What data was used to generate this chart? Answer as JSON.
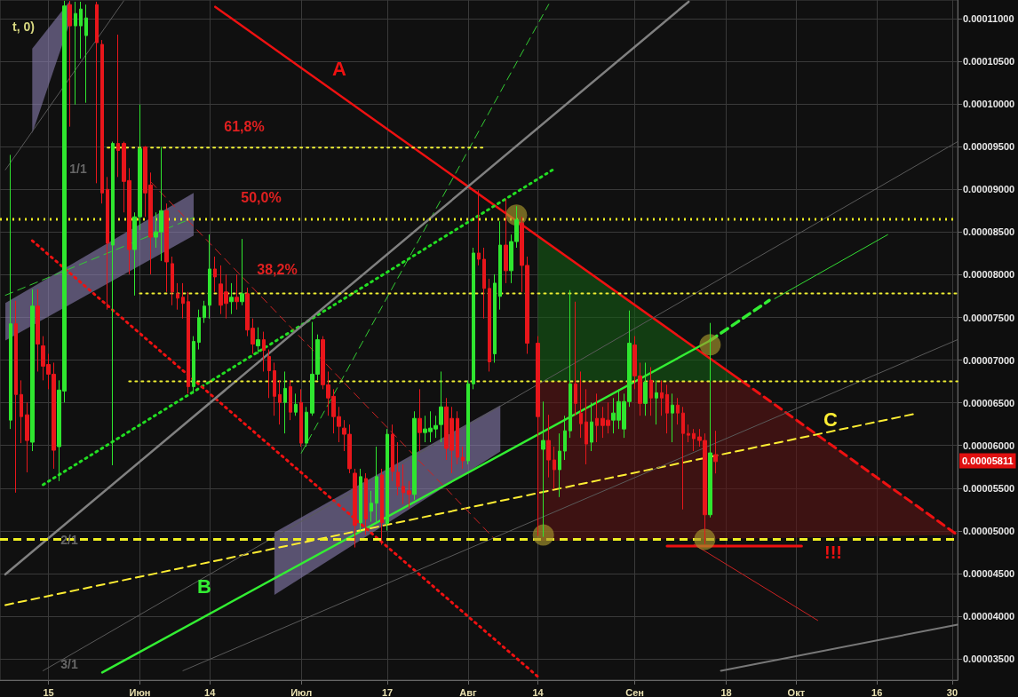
{
  "chart_data": {
    "type": "candlestick",
    "grid": true,
    "xlim": [
      "--05-06",
      "--10-31"
    ],
    "ylim": [
      3.25e-05,
      0.0001122
    ],
    "xticks": [
      {
        "value": "--05-15",
        "label": "15"
      },
      {
        "value": "--06-01",
        "label": "Июн"
      },
      {
        "value": "--06-14",
        "label": "14"
      },
      {
        "value": "--07-01",
        "label": "Июл"
      },
      {
        "value": "--07-17",
        "label": "17"
      },
      {
        "value": "--08-01",
        "label": "Авг"
      },
      {
        "value": "--08-14",
        "label": "14"
      },
      {
        "value": "--09-01",
        "label": "Сен"
      },
      {
        "value": "--09-18",
        "label": "18"
      },
      {
        "value": "--10-01",
        "label": "Окт"
      },
      {
        "value": "--10-16",
        "label": "16"
      },
      {
        "value": "--10-30",
        "label": "30"
      }
    ],
    "yticks": [
      {
        "value": 3.5e-05,
        "label": "0.00003500"
      },
      {
        "value": 4e-05,
        "label": "0.00004000"
      },
      {
        "value": 4.5e-05,
        "label": "0.00004500"
      },
      {
        "value": 5e-05,
        "label": "0.00005000"
      },
      {
        "value": 5.5e-05,
        "label": "0.00005500"
      },
      {
        "value": 6e-05,
        "label": "0.00006000"
      },
      {
        "value": 6.5e-05,
        "label": "0.00006500"
      },
      {
        "value": 7e-05,
        "label": "0.00007000"
      },
      {
        "value": 7.5e-05,
        "label": "0.00007500"
      },
      {
        "value": 8e-05,
        "label": "0.00008000"
      },
      {
        "value": 8.5e-05,
        "label": "0.00008500"
      },
      {
        "value": 9e-05,
        "label": "0.00009000"
      },
      {
        "value": 9.5e-05,
        "label": "0.00009500"
      },
      {
        "value": 0.0001,
        "label": "0.00010000"
      },
      {
        "value": 0.000105,
        "label": "0.00010500"
      },
      {
        "value": 0.00011,
        "label": "0.00011000"
      }
    ],
    "series": [
      {
        "color": "#2fe62f",
        "x": [
          "--05-08",
          "--05-12",
          "--05-17",
          "--05-18",
          "--05-20",
          "--05-21",
          "--05-22",
          "--05-27",
          "--05-31",
          "--06-01",
          "--06-04",
          "--06-05",
          "--06-11",
          "--06-12",
          "--06-13",
          "--06-14",
          "--06-18",
          "--06-20",
          "--06-23",
          "--06-28",
          "--06-30",
          "--07-02",
          "--07-03",
          "--07-04",
          "--07-12",
          "--07-14",
          "--07-15",
          "--07-17",
          "--07-22",
          "--07-24",
          "--07-25",
          "--07-26",
          "--07-27",
          "--08-01",
          "--08-02",
          "--08-06",
          "--08-07",
          "--08-09",
          "--08-10",
          "--08-15",
          "--08-18",
          "--08-19",
          "--08-20",
          "--08-24",
          "--08-28",
          "--08-29",
          "--08-30",
          "--08-31",
          "--09-03",
          "--09-05",
          "--09-08",
          "--09-15"
        ],
        "ohlc": [
          [
            6.297e-05,
            9.405e-05,
            6.193e-05,
            7.426e-05
          ],
          [
            6.038e-05,
            7.83e-05,
            5.934e-05,
            7.633e-05
          ],
          [
            5.986e-05,
            6.763e-05,
            5.582e-05,
            6.649e-05
          ],
          [
            6.638e-05,
            0.0001121,
            6.504e-05,
            0.0001115
          ],
          [
            0.00010917,
            0.000112,
            9.995e-05,
            0.00011062
          ],
          [
            0.00010917,
            0.000112,
            0.00010534,
            0.00011114
          ],
          [
            0.00010803,
            0.00011166,
            0.00010016,
            0.0001101
          ],
          [
            8.348e-05,
            9.56e-05,
            5.768e-05,
            9.539e-05
          ],
          [
            8.296e-05,
            8.731e-05,
            7.757e-05,
            8.679e-05
          ],
          [
            8.679e-05,
            9.995e-05,
            8.524e-05,
            9.477e-05
          ],
          [
            8.441e-05,
            8.731e-05,
            8.317e-05,
            8.503e-05
          ],
          [
            8.503e-05,
            9.498e-05,
            8.162e-05,
            8.752e-05
          ],
          [
            6.69e-05,
            7.281e-05,
            6.607e-05,
            7.219e-05
          ],
          [
            7.208e-05,
            7.592e-05,
            7.125e-05,
            7.498e-05
          ],
          [
            7.498e-05,
            7.695e-05,
            7.436e-05,
            7.633e-05
          ],
          [
            7.643e-05,
            8.472e-05,
            7.488e-05,
            8.068e-05
          ],
          [
            7.685e-05,
            7.902e-05,
            7.54e-05,
            7.737e-05
          ],
          [
            7.685e-05,
            8.42e-05,
            7.643e-05,
            7.778e-05
          ],
          [
            7.167e-05,
            7.384e-05,
            7.074e-05,
            7.239e-05
          ],
          [
            6.504e-05,
            6.866e-05,
            6.141e-05,
            6.669e-05
          ],
          [
            6.39e-05,
            6.607e-05,
            6.348e-05,
            6.483e-05
          ],
          [
            6.027e-05,
            6.452e-05,
            5.986e-05,
            6.39e-05
          ],
          [
            6.38e-05,
            7.447e-05,
            6.348e-05,
            6.835e-05
          ],
          [
            6.835e-05,
            7.301e-05,
            6.763e-05,
            7.239e-05
          ],
          [
            5.095e-05,
            5.727e-05,
            5.002e-05,
            5.634e-05
          ],
          [
            5.23e-05,
            5.468e-05,
            5.105e-05,
            5.323e-05
          ],
          [
            5.323e-05,
            5.986e-05,
            5.105e-05,
            5.634e-05
          ],
          [
            5.085e-05,
            6.193e-05,
            5.002e-05,
            6.131e-05
          ],
          [
            5.426e-05,
            6.4e-05,
            5.364e-05,
            6.317e-05
          ],
          [
            6.151e-05,
            6.348e-05,
            6.038e-05,
            6.193e-05
          ],
          [
            6.162e-05,
            6.4e-05,
            6.038e-05,
            6.203e-05
          ],
          [
            6.193e-05,
            6.348e-05,
            6.089e-05,
            6.234e-05
          ],
          [
            6.245e-05,
            6.866e-05,
            6.038e-05,
            6.452e-05
          ],
          [
            5.82e-05,
            6.763e-05,
            5.779e-05,
            6.722e-05
          ],
          [
            6.722e-05,
            8.317e-05,
            6.659e-05,
            8.255e-05
          ],
          [
            7.074e-05,
            8.006e-05,
            6.97e-05,
            7.902e-05
          ],
          [
            7.747e-05,
            8.628e-05,
            7.592e-05,
            8.348e-05
          ],
          [
            8.048e-05,
            8.472e-05,
            7.902e-05,
            8.389e-05
          ],
          [
            8.389e-05,
            8.804e-05,
            8.317e-05,
            8.648e-05
          ],
          [
            5.955e-05,
            6.514e-05,
            4.929e-05,
            6.058e-05
          ],
          [
            5.716e-05,
            6.141e-05,
            5.395e-05,
            5.934e-05
          ],
          [
            5.934e-05,
            6.348e-05,
            5.83e-05,
            6.172e-05
          ],
          [
            6.172e-05,
            7.82e-05,
            6.089e-05,
            6.722e-05
          ],
          [
            6.038e-05,
            6.504e-05,
            5.934e-05,
            6.276e-05
          ],
          [
            6.297e-05,
            6.556e-05,
            6.141e-05,
            6.38e-05
          ],
          [
            6.297e-05,
            6.659e-05,
            6.193e-05,
            6.514e-05
          ],
          [
            6.193e-05,
            6.607e-05,
            6.089e-05,
            6.514e-05
          ],
          [
            6.514e-05,
            7.581e-05,
            6.452e-05,
            7.198e-05
          ],
          [
            6.493e-05,
            6.97e-05,
            6.348e-05,
            6.742e-05
          ],
          [
            6.556e-05,
            6.763e-05,
            6.245e-05,
            6.618e-05
          ],
          [
            6.38e-05,
            6.607e-05,
            6.038e-05,
            6.473e-05
          ],
          [
            5.188e-05,
            7.436e-05,
            5.157e-05,
            5.913e-05
          ]
        ]
      },
      {
        "color": "#e8161b",
        "x": [
          "--05-09",
          "--05-10",
          "--05-11",
          "--05-13",
          "--05-14",
          "--05-15",
          "--05-16",
          "--05-19",
          "--05-24",
          "--05-25",
          "--05-26",
          "--05-28",
          "--05-29",
          "--05-30",
          "--06-02",
          "--06-03",
          "--06-06",
          "--06-07",
          "--06-08",
          "--06-09",
          "--06-10",
          "--06-15",
          "--06-16",
          "--06-17",
          "--06-19",
          "--06-21",
          "--06-22",
          "--06-24",
          "--06-25",
          "--06-26",
          "--06-27",
          "--06-29",
          "--07-01",
          "--07-05",
          "--07-06",
          "--07-07",
          "--07-08",
          "--07-09",
          "--07-10",
          "--07-11",
          "--07-13",
          "--07-16",
          "--07-18",
          "--07-19",
          "--07-20",
          "--07-21",
          "--07-23",
          "--07-28",
          "--07-29",
          "--07-30",
          "--07-31",
          "--08-03",
          "--08-04",
          "--08-05",
          "--08-08",
          "--08-11",
          "--08-12",
          "--08-14",
          "--08-16",
          "--08-17",
          "--08-21",
          "--08-22",
          "--08-23",
          "--08-25",
          "--08-26",
          "--08-27",
          "--09-01",
          "--09-02",
          "--09-04",
          "--09-06",
          "--09-07",
          "--09-09",
          "--09-10",
          "--09-11",
          "--09-12",
          "--09-13",
          "--09-14",
          "--09-16"
        ],
        "ohlc": [
          [
            7.426e-05,
            7.695e-05,
            5.447e-05,
            6.597e-05
          ],
          [
            6.597e-05,
            6.763e-05,
            6.027e-05,
            6.338e-05
          ],
          [
            6.359e-05,
            6.504e-05,
            5.685e-05,
            6.058e-05
          ],
          [
            7.633e-05,
            7.83e-05,
            6.866e-05,
            7.188e-05
          ],
          [
            7.167e-05,
            7.281e-05,
            6.763e-05,
            6.929e-05
          ],
          [
            6.949e-05,
            7.074e-05,
            6.659e-05,
            6.835e-05
          ],
          [
            6.835e-05,
            6.97e-05,
            5.727e-05,
            5.944e-05
          ],
          [
            0.00011166,
            0.0001121,
            9.736e-05,
            0.00010917
          ],
          [
            0.00011166,
            0.000112,
            9.073e-05,
            0.0001072
          ],
          [
            0.000107,
            0.00010751,
            8.835e-05,
            8.959e-05
          ],
          [
            9.001e-05,
            9.146e-05,
            7.592e-05,
            8.369e-05
          ],
          [
            9.539e-05,
            0.00010814,
            9.146e-05,
            9.456e-05
          ],
          [
            9.539e-05,
            9.56e-05,
            8.731e-05,
            9.094e-05
          ],
          [
            9.104e-05,
            9.25e-05,
            8.006e-05,
            8.296e-05
          ],
          [
            9.498e-05,
            9.508e-05,
            8.679e-05,
            8.959e-05
          ],
          [
            9.052e-05,
            9.198e-05,
            8.006e-05,
            8.441e-05
          ],
          [
            8.752e-05,
            8.835e-05,
            7.799e-05,
            8.151e-05
          ],
          [
            8.131e-05,
            8.213e-05,
            7.643e-05,
            7.799e-05
          ],
          [
            7.778e-05,
            7.902e-05,
            7.592e-05,
            7.726e-05
          ],
          [
            7.737e-05,
            7.902e-05,
            7.488e-05,
            7.664e-05
          ],
          [
            7.685e-05,
            7.799e-05,
            6.607e-05,
            6.69e-05
          ],
          [
            8.068e-05,
            8.213e-05,
            7.799e-05,
            7.975e-05
          ],
          [
            7.892e-05,
            8.11e-05,
            7.54e-05,
            7.643e-05
          ],
          [
            7.799e-05,
            8.006e-05,
            7.488e-05,
            7.664e-05
          ],
          [
            7.737e-05,
            8.006e-05,
            7.592e-05,
            7.685e-05
          ],
          [
            7.778e-05,
            7.85e-05,
            7.281e-05,
            7.353e-05
          ],
          [
            7.374e-05,
            7.488e-05,
            7.074e-05,
            7.188e-05
          ],
          [
            7.239e-05,
            7.333e-05,
            6.866e-05,
            7.115e-05
          ],
          [
            7.043e-05,
            7.125e-05,
            6.556e-05,
            6.876e-05
          ],
          [
            6.876e-05,
            6.97e-05,
            6.348e-05,
            6.576e-05
          ],
          [
            6.597e-05,
            6.763e-05,
            6.245e-05,
            6.504e-05
          ],
          [
            6.69e-05,
            6.763e-05,
            6.297e-05,
            6.39e-05
          ],
          [
            6.504e-05,
            6.659e-05,
            5.986e-05,
            6.027e-05
          ],
          [
            7.239e-05,
            7.281e-05,
            6.659e-05,
            6.711e-05
          ],
          [
            6.711e-05,
            6.866e-05,
            6.348e-05,
            6.556e-05
          ],
          [
            6.576e-05,
            6.659e-05,
            6.141e-05,
            6.338e-05
          ],
          [
            6.338e-05,
            6.452e-05,
            6.038e-05,
            6.224e-05
          ],
          [
            6.203e-05,
            6.297e-05,
            5.934e-05,
            6.131e-05
          ],
          [
            6.131e-05,
            6.245e-05,
            5.675e-05,
            5.727e-05
          ],
          [
            5.675e-05,
            5.727e-05,
            4.805e-05,
            5.064e-05
          ],
          [
            5.613e-05,
            5.675e-05,
            4.95e-05,
            5.136e-05
          ],
          [
            5.654e-05,
            5.727e-05,
            4.836e-05,
            5.095e-05
          ],
          [
            6.131e-05,
            6.245e-05,
            5.582e-05,
            5.696e-05
          ],
          [
            5.686e-05,
            6.038e-05,
            5.416e-05,
            5.52e-05
          ],
          [
            5.52e-05,
            5.779e-05,
            5.312e-05,
            5.447e-05
          ],
          [
            5.468e-05,
            5.582e-05,
            5.261e-05,
            5.426e-05
          ],
          [
            6.317e-05,
            6.659e-05,
            5.934e-05,
            6.151e-05
          ],
          [
            6.452e-05,
            6.556e-05,
            5.83e-05,
            5.965e-05
          ],
          [
            6.317e-05,
            6.452e-05,
            5.675e-05,
            5.944e-05
          ],
          [
            6.317e-05,
            6.4e-05,
            5.779e-05,
            5.862e-05
          ],
          [
            5.862e-05,
            5.986e-05,
            5.727e-05,
            5.82e-05
          ],
          [
            8.255e-05,
            8.99e-05,
            8.11e-05,
            8.182e-05
          ],
          [
            8.182e-05,
            8.317e-05,
            7.488e-05,
            7.84e-05
          ],
          [
            7.84e-05,
            7.954e-05,
            6.866e-05,
            6.98e-05
          ],
          [
            8.348e-05,
            8.887e-05,
            7.902e-05,
            8.048e-05
          ],
          [
            8.607e-05,
            8.679e-05,
            7.799e-05,
            8.11e-05
          ],
          [
            8.11e-05,
            8.213e-05,
            7.074e-05,
            7.198e-05
          ],
          [
            7.198e-05,
            7.281e-05,
            4.94e-05,
            6.338e-05
          ],
          [
            6.058e-05,
            6.359e-05,
            5.626e-05,
            5.83e-05
          ],
          [
            5.83e-05,
            5.986e-05,
            5.489e-05,
            5.716e-05
          ],
          [
            6.722e-05,
            7.685e-05,
            6.348e-05,
            6.493e-05
          ],
          [
            6.38e-05,
            6.866e-05,
            6.089e-05,
            6.255e-05
          ],
          [
            6.276e-05,
            6.659e-05,
            5.779e-05,
            6.017e-05
          ],
          [
            6.317e-05,
            6.607e-05,
            6.038e-05,
            6.234e-05
          ],
          [
            6.317e-05,
            6.452e-05,
            6.089e-05,
            6.234e-05
          ],
          [
            6.297e-05,
            6.504e-05,
            6.141e-05,
            6.234e-05
          ],
          [
            7.177e-05,
            7.281e-05,
            6.659e-05,
            6.815e-05
          ],
          [
            6.815e-05,
            6.97e-05,
            6.348e-05,
            6.493e-05
          ],
          [
            6.763e-05,
            6.918e-05,
            6.348e-05,
            6.556e-05
          ],
          [
            6.618e-05,
            6.763e-05,
            6.348e-05,
            6.556e-05
          ],
          [
            6.597e-05,
            6.711e-05,
            6.141e-05,
            6.38e-05
          ],
          [
            6.473e-05,
            6.556e-05,
            6.245e-05,
            6.38e-05
          ],
          [
            6.38e-05,
            6.452e-05,
            5.25e-05,
            6.141e-05
          ],
          [
            6.141e-05,
            6.245e-05,
            6.038e-05,
            6.12e-05
          ],
          [
            6.141e-05,
            6.193e-05,
            5.934e-05,
            6.079e-05
          ],
          [
            6.1e-05,
            6.193e-05,
            5.986e-05,
            6.058e-05
          ],
          [
            6.058e-05,
            6.141e-05,
            4.846e-05,
            5.188e-05
          ],
          [
            5.892e-05,
            6.172e-05,
            5.672e-05,
            5.811e-05
          ]
        ]
      },
      {
        "type": "line",
        "color": "#ee1111",
        "line_style": "solid",
        "x": [
          "--06-15",
          "--09-21"
        ],
        "values": [
          0.0001114,
          6.75e-05
        ]
      },
      {
        "type": "line",
        "color": "#ee1111",
        "line_style": "dashed",
        "x": [
          "--09-21",
          "--10-31"
        ],
        "values": [
          6.75e-05,
          4.95e-05
        ]
      },
      {
        "type": "line",
        "color": "#33ee33",
        "line_style": "solid",
        "x": [
          "--05-25",
          "--09-15"
        ],
        "values": [
          3.34e-05,
          7.23e-05
        ]
      },
      {
        "type": "line",
        "color": "#33ee33",
        "line_style": "dashed",
        "x": [
          "--09-15",
          "--09-26"
        ],
        "values": [
          7.23e-05,
          7.7e-05
        ]
      },
      {
        "type": "line",
        "color": "#33dd33",
        "line_style": "solid",
        "x": [
          "--09-27",
          "--10-18"
        ],
        "values": [
          7.72e-05,
          8.47e-05
        ]
      },
      {
        "type": "line",
        "color": "#ffee33",
        "line_style": "dashed",
        "x": [
          "--05-07",
          "--10-23"
        ],
        "values": [
          4.13e-05,
          6.37e-05
        ]
      },
      {
        "type": "line",
        "color": "#22dd22",
        "line_style": "dotted",
        "x": [
          "--05-14",
          "--08-17"
        ],
        "values": [
          5.54e-05,
          9.24e-05
        ]
      },
      {
        "type": "line",
        "color": "#33cc33",
        "line_style": "dashed",
        "x": [
          "--05-07",
          "--06-11"
        ],
        "values": [
          7.76e-05,
          8.67e-05
        ]
      },
      {
        "type": "line",
        "color": "#33cc33",
        "line_style": "dashed",
        "x": [
          "--07-01",
          "--08-16"
        ],
        "values": [
          5.91e-05,
          0.0001117
        ]
      },
      {
        "type": "line",
        "color": "#ee1111",
        "line_style": "dotted",
        "x": [
          "--05-12",
          "--08-14"
        ],
        "values": [
          8.4e-05,
          3.29e-05
        ]
      },
      {
        "type": "line",
        "color": "#cc2222",
        "line_style": "dashed",
        "x": [
          "--06-03",
          "--08-06"
        ],
        "values": [
          9.09e-05,
          4.9e-05
        ]
      },
      {
        "type": "line",
        "color": "#808080",
        "line_style": "solid",
        "x": [
          "--05-07",
          "--09-11"
        ],
        "values": [
          4.49e-05,
          0.000112
        ]
      },
      {
        "type": "line",
        "color": "#5a5a5a",
        "line_style": "solid",
        "x": [
          "--05-07",
          "--05-29"
        ],
        "values": [
          9.23e-05,
          0.0001121
        ]
      },
      {
        "type": "line",
        "color": "#5a5a5a",
        "line_style": "solid",
        "x": [
          "--05-14",
          "--10-31"
        ],
        "values": [
          3.36e-05,
          9.56e-05
        ]
      },
      {
        "type": "line",
        "color": "#5a5a5a",
        "line_style": "solid",
        "x": [
          "--06-09",
          "--10-31"
        ],
        "values": [
          3.36e-05,
          7.24e-05
        ]
      },
      {
        "type": "line",
        "color": "#787878",
        "line_style": "solid",
        "x": [
          "--09-17",
          "--10-31"
        ],
        "values": [
          3.36e-05,
          3.9e-05
        ]
      },
      {
        "type": "line",
        "color": "#eeee33",
        "line_style": "dotted",
        "x": [
          "--05-26",
          "--08-04"
        ],
        "values": [
          9.49e-05,
          9.49e-05
        ]
      },
      {
        "type": "line",
        "color": "#eeee33",
        "line_style": "dotted",
        "x": [
          "--06-01",
          "--10-31"
        ],
        "values": [
          7.78e-05,
          7.78e-05
        ]
      },
      {
        "type": "line",
        "color": "#eeee33",
        "line_style": "dotted",
        "x": [
          "--05-30",
          "--10-31"
        ],
        "values": [
          6.75e-05,
          6.75e-05
        ]
      },
      {
        "type": "line",
        "color": "#ee1111",
        "line_style": "solid",
        "x": [
          "--09-07",
          "--10-02"
        ],
        "values": [
          4.82e-05,
          4.82e-05
        ]
      },
      {
        "type": "line",
        "color": "#cc2222",
        "line_style": "solid",
        "x": [
          "--09-12",
          "--10-05"
        ],
        "values": [
          4.84e-05,
          3.95e-05
        ]
      },
      {
        "type": "area",
        "color": "#145c14",
        "x": [
          "--08-14",
          "--09-21"
        ],
        "values": [
          null,
          null
        ],
        "lower": [
          6.75e-05,
          6.75e-05
        ],
        "upper": [
          8.45e-05,
          6.75e-05
        ]
      },
      {
        "type": "area",
        "color": "#5c1414",
        "x": [
          "--08-14",
          "--09-21",
          "--10-31"
        ],
        "values": [
          null,
          null,
          null
        ],
        "lower": [
          4.88e-05,
          4.91e-05,
          4.95e-05
        ],
        "upper": [
          6.75e-05,
          6.75e-05,
          4.95e-05
        ]
      },
      {
        "type": "area",
        "color": "#8a7fb0",
        "x": [
          "--05-12",
          "--05-19"
        ],
        "values": [
          null,
          null
        ],
        "lower": [
          9.66e-05,
          0.0001096
        ],
        "upper": [
          0.0001065,
          0.0001121
        ]
      },
      {
        "type": "area",
        "color": "#8a7fb0",
        "x": [
          "--05-07",
          "--06-11"
        ],
        "values": [
          null,
          null
        ],
        "lower": [
          7.23e-05,
          8.46e-05
        ],
        "upper": [
          7.67e-05,
          8.96e-05
        ]
      },
      {
        "type": "area",
        "color": "#8a7fb0",
        "x": [
          "--06-26",
          "--08-07"
        ],
        "values": [
          null,
          null
        ],
        "lower": [
          4.25e-05,
          5.93e-05
        ],
        "upper": [
          4.98e-05,
          6.47e-05
        ]
      },
      {
        "type": "scatter",
        "color": "#a8962c",
        "marker": "circle",
        "x": [
          "--08-10",
          "--08-15",
          "--09-14",
          "--09-15"
        ],
        "values": [
          8.7e-05,
          4.95e-05,
          4.9e-05,
          7.18e-05
        ]
      }
    ],
    "ref_lines": [
      {
        "axis": "y",
        "value": 8.65e-05,
        "color": "#eeee22",
        "line_style": "dotted"
      },
      {
        "axis": "y",
        "value": 4.9e-05,
        "color": "#eeee22",
        "line_style": "dashed"
      }
    ],
    "annotations": [
      "A",
      "B",
      "C",
      "!!!",
      "61,8%",
      "50,0%",
      "38,2%",
      "1/1",
      "2/1",
      "3/1",
      "t, 0)",
      "0.00005811"
    ]
  }
}
